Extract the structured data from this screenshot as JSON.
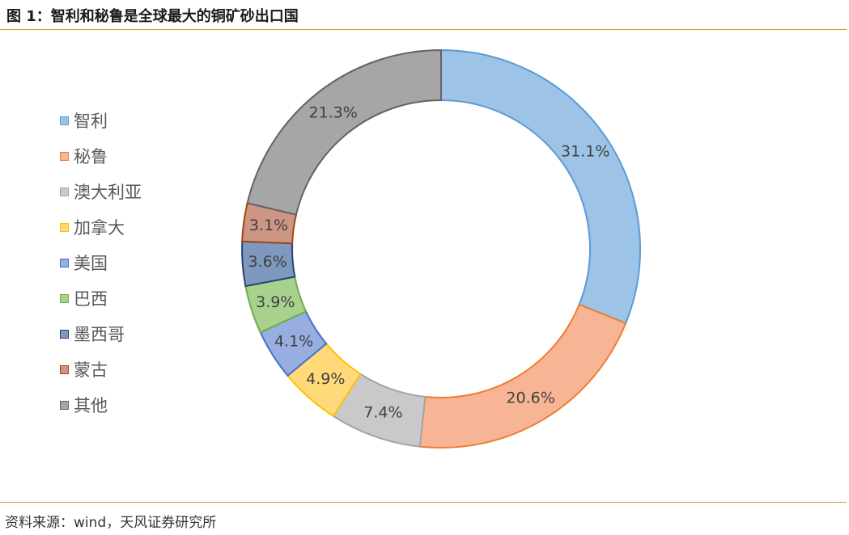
{
  "figure": {
    "title": "图 1：智利和秘鲁是全球最大的铜矿砂出口国",
    "source": "资料来源：wind，天风证券研究所"
  },
  "chart_data": {
    "type": "pie",
    "subtype": "donut",
    "title": "",
    "legend_position": "left",
    "series": [
      {
        "name": "智利",
        "value": 31.1,
        "label": "31.1%",
        "fill": "#9dc3e6",
        "stroke": "#5b9bd5"
      },
      {
        "name": "秘鲁",
        "value": 20.6,
        "label": "20.6%",
        "fill": "#f8b596",
        "stroke": "#ed7d31"
      },
      {
        "name": "澳大利亚",
        "value": 7.4,
        "label": "7.4%",
        "fill": "#c9c9c9",
        "stroke": "#a5a5a5"
      },
      {
        "name": "加拿大",
        "value": 4.9,
        "label": "4.9%",
        "fill": "#ffd97a",
        "stroke": "#ffc000"
      },
      {
        "name": "美国",
        "value": 4.1,
        "label": "4.1%",
        "fill": "#98aee0",
        "stroke": "#4472c4"
      },
      {
        "name": "巴西",
        "value": 3.9,
        "label": "3.9%",
        "fill": "#a9d18e",
        "stroke": "#70ad47"
      },
      {
        "name": "墨西哥",
        "value": 3.6,
        "label": "3.6%",
        "fill": "#7f98bf",
        "stroke": "#264478"
      },
      {
        "name": "蒙古",
        "value": 3.1,
        "label": "3.1%",
        "fill": "#cd9584",
        "stroke": "#9e480e"
      },
      {
        "name": "其他",
        "value": 21.3,
        "label": "21.3%",
        "fill": "#a6a6a6",
        "stroke": "#636363"
      }
    ]
  }
}
